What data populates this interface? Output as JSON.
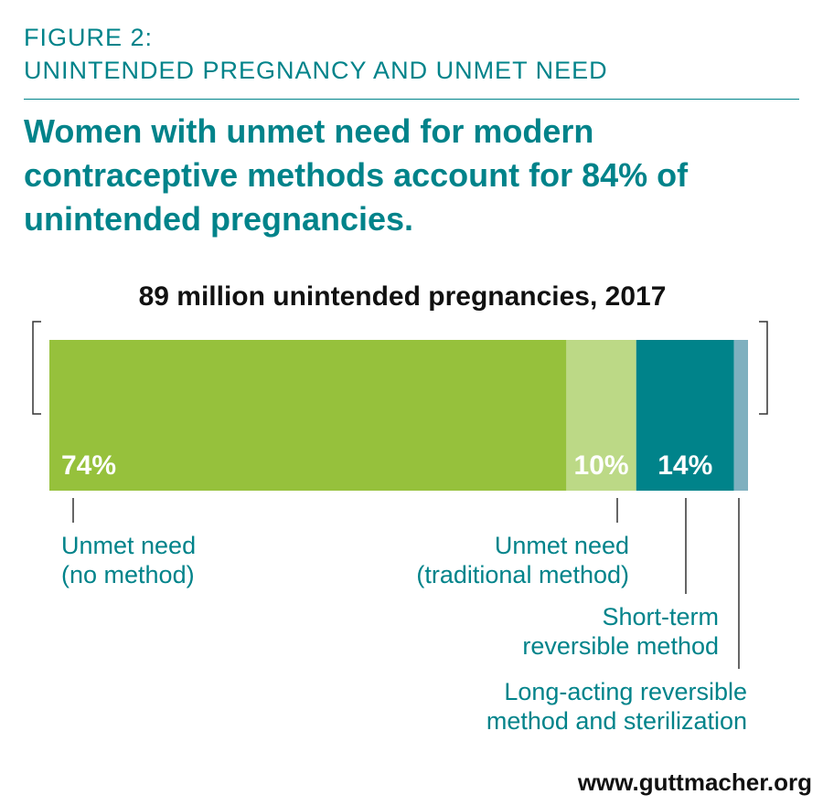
{
  "figure": {
    "number": "FIGURE 2:",
    "subtitle": "UNINTENDED PREGNANCY AND UNMET NEED",
    "headline": "Women with unmet need for modern contraceptive methods account for 84% of unintended pregnancies."
  },
  "colors": {
    "teal": "#00838a",
    "green": "#96c13c",
    "light_green": "#bcd986",
    "slate": "#7fb0bf",
    "bracket": "#333333"
  },
  "chart_data": {
    "type": "bar",
    "orientation": "horizontal-stacked",
    "title": "89 million unintended pregnancies, 2017",
    "total_label": "89 million",
    "year": 2017,
    "segments": [
      {
        "name": "Unmet need (no method)",
        "label_lines": [
          "Unmet need",
          "(no method)"
        ],
        "value": 74,
        "value_label": "74%",
        "color": "#96c13c"
      },
      {
        "name": "Unmet need (traditional method)",
        "label_lines": [
          "Unmet need",
          "(traditional method)"
        ],
        "value": 10,
        "value_label": "10%",
        "color": "#bcd986"
      },
      {
        "name": "Short-term reversible method",
        "label_lines": [
          "Short-term",
          "reversible method"
        ],
        "value": 14,
        "value_label": "14%",
        "color": "#00838a"
      },
      {
        "name": "Long-acting reversible method and sterilization",
        "label_lines": [
          "Long-acting reversible",
          "method and sterilization"
        ],
        "value": 2,
        "value_label": "",
        "color": "#7fb0bf"
      }
    ],
    "unit": "%",
    "xlim": [
      0,
      100
    ]
  },
  "source": "www.guttmacher.org"
}
